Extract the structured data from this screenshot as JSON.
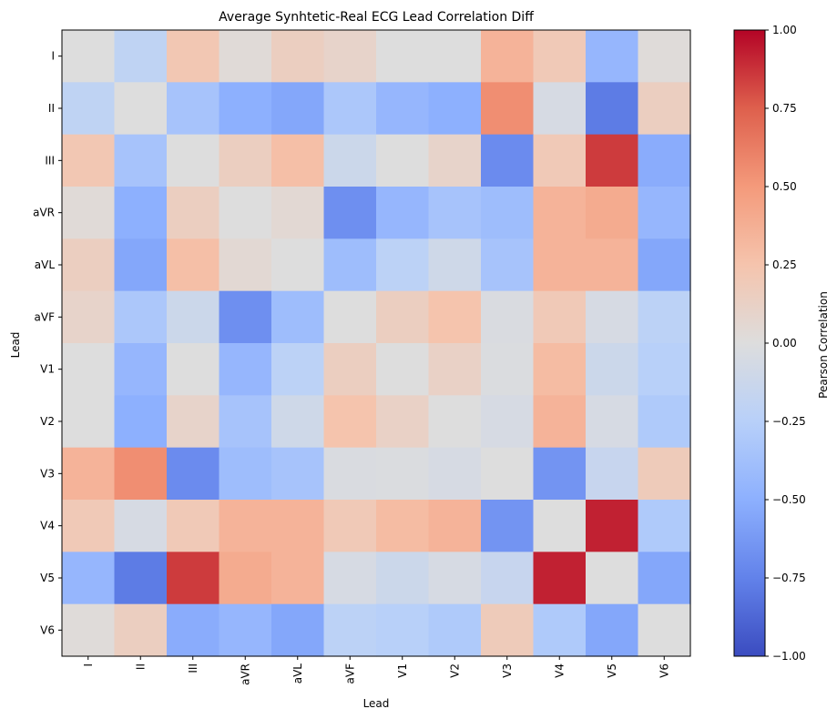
{
  "chart_data": {
    "type": "heatmap",
    "title": "Average Synhtetic-Real ECG Lead Correlation Diff",
    "xlabel": "Lead",
    "ylabel": "Lead",
    "x_categories": [
      "I",
      "II",
      "III",
      "aVR",
      "aVL",
      "aVF",
      "V1",
      "V2",
      "V3",
      "V4",
      "V5",
      "V6"
    ],
    "y_categories": [
      "I",
      "II",
      "III",
      "aVR",
      "aVL",
      "aVF",
      "V1",
      "V2",
      "V3",
      "V4",
      "V5",
      "V6"
    ],
    "values": [
      [
        0.0,
        -0.2,
        0.22,
        0.03,
        0.15,
        0.1,
        0.0,
        0.0,
        0.35,
        0.2,
        -0.45,
        0.02
      ],
      [
        -0.2,
        0.0,
        -0.35,
        -0.5,
        -0.55,
        -0.32,
        -0.45,
        -0.5,
        0.55,
        -0.05,
        -0.78,
        0.15
      ],
      [
        0.22,
        -0.35,
        0.0,
        0.15,
        0.28,
        -0.12,
        0.0,
        0.1,
        -0.7,
        0.2,
        0.85,
        -0.52
      ],
      [
        0.03,
        -0.5,
        0.15,
        0.0,
        0.05,
        -0.68,
        -0.45,
        -0.35,
        -0.4,
        0.35,
        0.4,
        -0.45
      ],
      [
        0.15,
        -0.55,
        0.28,
        0.05,
        0.0,
        -0.4,
        -0.22,
        -0.1,
        -0.35,
        0.35,
        0.35,
        -0.55
      ],
      [
        0.1,
        -0.32,
        -0.12,
        -0.68,
        -0.4,
        0.0,
        0.15,
        0.25,
        -0.03,
        0.2,
        -0.05,
        -0.22
      ],
      [
        0.0,
        -0.45,
        0.0,
        -0.45,
        -0.22,
        0.15,
        0.0,
        0.12,
        -0.02,
        0.3,
        -0.12,
        -0.25
      ],
      [
        0.0,
        -0.5,
        0.1,
        -0.35,
        -0.1,
        0.25,
        0.12,
        0.0,
        -0.05,
        0.35,
        -0.05,
        -0.3
      ],
      [
        0.35,
        0.55,
        -0.7,
        -0.4,
        -0.35,
        -0.03,
        -0.02,
        -0.05,
        0.0,
        -0.65,
        -0.15,
        0.18
      ],
      [
        0.2,
        -0.05,
        0.2,
        0.35,
        0.35,
        0.2,
        0.3,
        0.35,
        -0.65,
        0.0,
        0.92,
        -0.3
      ],
      [
        -0.45,
        -0.78,
        0.85,
        0.4,
        0.35,
        -0.05,
        -0.12,
        -0.05,
        -0.15,
        0.92,
        0.0,
        -0.55
      ],
      [
        0.02,
        0.15,
        -0.52,
        -0.45,
        -0.55,
        -0.22,
        -0.25,
        -0.3,
        0.18,
        -0.3,
        -0.55,
        0.0
      ]
    ],
    "vmin": -1.0,
    "vmax": 1.0,
    "colormap": "coolwarm",
    "colorbar": {
      "label": "Pearson Correlation",
      "ticks": [
        1.0,
        0.75,
        0.5,
        0.25,
        0.0,
        -0.25,
        -0.5,
        -0.75,
        -1.0
      ],
      "tick_labels": [
        "1.00",
        "0.75",
        "0.50",
        "0.25",
        "0.00",
        "−0.25",
        "−0.50",
        "−0.75",
        "−1.00"
      ]
    }
  }
}
